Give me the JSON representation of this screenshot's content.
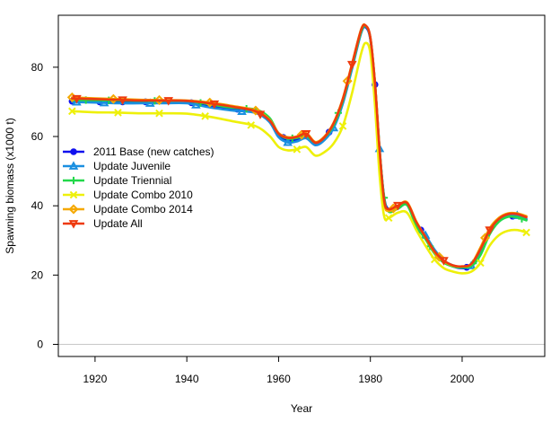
{
  "chart_data": {
    "type": "line",
    "xlabel": "Year",
    "ylabel": "Spawning biomass (x1000 t)",
    "xlim": [
      1912,
      2018
    ],
    "ylim": [
      -3.5,
      95
    ],
    "x_ticks": [
      1920,
      1940,
      1960,
      1980,
      2000
    ],
    "y_ticks": [
      0,
      20,
      40,
      60,
      80
    ],
    "reference_line": {
      "y": 0,
      "color": "#c8c8c8"
    },
    "legend_position": "left",
    "series": [
      {
        "name": "2011 Base (new catches)",
        "color": "#1010ee",
        "marker": "circle",
        "x": [
          1915,
          1920,
          1925,
          1930,
          1935,
          1940,
          1945,
          1950,
          1955,
          1958,
          1960,
          1962,
          1964,
          1966,
          1968,
          1970,
          1972,
          1974,
          1976,
          1978,
          1979,
          1980,
          1981,
          1982,
          1983,
          1984,
          1986,
          1988,
          1990,
          1992,
          1994,
          1996,
          1998,
          2000,
          2002,
          2004,
          2006,
          2008,
          2010,
          2012,
          2014
        ],
        "y": [
          70.2,
          70.0,
          70.0,
          70.0,
          70.0,
          70.0,
          68.8,
          68.0,
          67.5,
          65.0,
          60.5,
          59.0,
          59.2,
          60.0,
          58.0,
          59.5,
          63.0,
          70.0,
          80.0,
          90.0,
          91.5,
          88.0,
          75.0,
          56.0,
          42.5,
          39.0,
          39.5,
          40.5,
          35.0,
          31.0,
          27.0,
          24.0,
          22.5,
          22.0,
          22.5,
          26.0,
          32.0,
          35.5,
          37.0,
          37.0,
          36.0
        ],
        "marker_years": [
          1915,
          1921,
          1926,
          1931,
          1941,
          1951,
          1961,
          1971,
          1981,
          1991,
          2001,
          2011
        ]
      },
      {
        "name": "Update Juvenile",
        "color": "#1a8fe0",
        "marker": "triangle-up",
        "x": [
          1915,
          1920,
          1925,
          1930,
          1935,
          1940,
          1945,
          1950,
          1955,
          1958,
          1960,
          1962,
          1964,
          1966,
          1968,
          1970,
          1972,
          1974,
          1976,
          1978,
          1979,
          1980,
          1981,
          1982,
          1983,
          1984,
          1986,
          1988,
          1990,
          1992,
          1994,
          1996,
          1998,
          2000,
          2002,
          2004,
          2006,
          2008,
          2010,
          2012,
          2014
        ],
        "y": [
          70.0,
          69.8,
          69.6,
          69.6,
          69.6,
          69.6,
          68.4,
          67.5,
          66.8,
          64.2,
          59.8,
          58.3,
          58.6,
          59.5,
          57.5,
          59.0,
          62.5,
          69.5,
          79.5,
          90.0,
          91.8,
          88.5,
          75.5,
          56.5,
          42.0,
          38.6,
          39.2,
          40.3,
          34.8,
          31.5,
          27.3,
          24.2,
          22.8,
          22.3,
          22.7,
          26.3,
          32.3,
          35.8,
          37.3,
          37.2,
          36.2
        ],
        "marker_years": [
          1916,
          1922,
          1932,
          1942,
          1952,
          1962,
          1972,
          1982,
          1992,
          2002,
          2012
        ]
      },
      {
        "name": "Update Triennial",
        "color": "#22d84a",
        "marker": "plus",
        "x": [
          1915,
          1920,
          1925,
          1930,
          1935,
          1940,
          1945,
          1950,
          1955,
          1958,
          1960,
          1962,
          1964,
          1966,
          1968,
          1970,
          1972,
          1974,
          1976,
          1978,
          1979,
          1980,
          1981,
          1982,
          1983,
          1984,
          1986,
          1988,
          1990,
          1992,
          1994,
          1996,
          1998,
          2000,
          2002,
          2004,
          2006,
          2008,
          2010,
          2012,
          2014
        ],
        "y": [
          70.5,
          70.5,
          70.4,
          70.3,
          70.3,
          70.3,
          69.3,
          68.3,
          67.8,
          65.4,
          60.8,
          59.4,
          59.6,
          60.3,
          58.2,
          59.7,
          63.3,
          70.3,
          80.3,
          90.3,
          91.8,
          88.3,
          75.3,
          56.3,
          42.3,
          38.3,
          39.2,
          40.2,
          34.2,
          30.4,
          26.2,
          23.6,
          22.5,
          22.2,
          22.6,
          25.8,
          31.8,
          35.4,
          36.8,
          36.7,
          35.8
        ],
        "marker_years": [
          1918,
          1923,
          1933,
          1943,
          1953,
          1963,
          1973,
          1983,
          1993,
          2003,
          2013
        ]
      },
      {
        "name": "Update Combo 2010",
        "color": "#eef00a",
        "marker": "cross",
        "x": [
          1915,
          1920,
          1925,
          1930,
          1935,
          1940,
          1945,
          1950,
          1955,
          1958,
          1960,
          1962,
          1964,
          1966,
          1968,
          1970,
          1972,
          1974,
          1976,
          1978,
          1979,
          1980,
          1981,
          1982,
          1983,
          1984,
          1986,
          1988,
          1990,
          1992,
          1994,
          1996,
          1998,
          2000,
          2002,
          2004,
          2006,
          2008,
          2010,
          2012,
          2014
        ],
        "y": [
          67.3,
          67.0,
          66.9,
          66.7,
          66.7,
          66.6,
          65.7,
          64.4,
          63.0,
          60.2,
          57.0,
          56.0,
          56.3,
          57.0,
          54.5,
          55.5,
          58.0,
          63.0,
          72.5,
          84.0,
          87.0,
          84.0,
          69.0,
          49.0,
          37.0,
          36.5,
          38.0,
          38.0,
          33.0,
          28.5,
          24.5,
          22.0,
          21.0,
          20.5,
          21.0,
          23.5,
          28.5,
          31.5,
          32.8,
          33.0,
          32.3
        ],
        "marker_years": [
          1915,
          1925,
          1934,
          1944,
          1954,
          1964,
          1974,
          1984,
          1994,
          2004,
          2014
        ]
      },
      {
        "name": "Update Combo 2014",
        "color": "#f5a800",
        "marker": "diamond",
        "x": [
          1915,
          1920,
          1925,
          1930,
          1935,
          1940,
          1945,
          1950,
          1955,
          1958,
          1960,
          1962,
          1964,
          1966,
          1968,
          1970,
          1972,
          1974,
          1976,
          1978,
          1979,
          1980,
          1981,
          1982,
          1983,
          1984,
          1986,
          1988,
          1990,
          1992,
          1994,
          1996,
          1998,
          2000,
          2002,
          2004,
          2006,
          2008,
          2010,
          2012,
          2014
        ],
        "y": [
          71.3,
          71.0,
          70.8,
          70.6,
          70.5,
          70.4,
          69.8,
          68.8,
          67.5,
          64.9,
          61.0,
          59.8,
          60.0,
          61.0,
          58.4,
          60.0,
          64.0,
          71.0,
          81.0,
          91.0,
          92.0,
          88.5,
          75.5,
          56.0,
          41.0,
          38.5,
          40.0,
          41.0,
          35.5,
          31.0,
          26.5,
          24.0,
          22.7,
          22.5,
          23.2,
          28.0,
          33.5,
          36.5,
          37.8,
          37.8,
          37.0
        ],
        "marker_years": [
          1915,
          1924,
          1934,
          1945,
          1955,
          1965,
          1975,
          1985,
          1995,
          2005
        ]
      },
      {
        "name": "Update All",
        "color": "#ee3a0e",
        "marker": "triangle-down",
        "x": [
          1915,
          1920,
          1925,
          1930,
          1935,
          1940,
          1945,
          1950,
          1955,
          1958,
          1960,
          1962,
          1964,
          1966,
          1968,
          1970,
          1972,
          1974,
          1976,
          1978,
          1979,
          1980,
          1981,
          1982,
          1983,
          1984,
          1986,
          1988,
          1990,
          1992,
          1994,
          1996,
          1998,
          2000,
          2002,
          2004,
          2006,
          2008,
          2010,
          2012,
          2014
        ],
        "y": [
          71.0,
          70.8,
          70.6,
          70.4,
          70.4,
          70.3,
          69.6,
          68.6,
          67.3,
          64.7,
          60.8,
          59.6,
          59.9,
          60.8,
          58.2,
          59.8,
          63.8,
          70.8,
          80.8,
          90.8,
          92.0,
          88.5,
          75.3,
          56.3,
          41.6,
          39.0,
          40.1,
          40.8,
          35.3,
          31.0,
          26.8,
          24.2,
          22.8,
          22.5,
          23.2,
          27.5,
          33.0,
          36.2,
          37.6,
          37.6,
          36.7
        ],
        "marker_years": [
          1916,
          1926,
          1936,
          1946,
          1956,
          1966,
          1976,
          1986,
          1996,
          2006
        ]
      }
    ]
  }
}
